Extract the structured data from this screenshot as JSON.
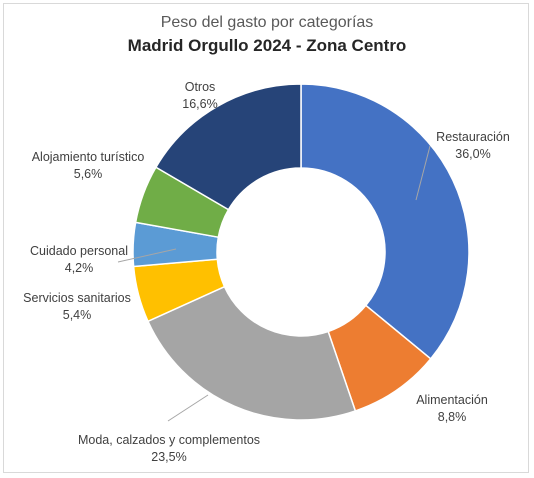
{
  "chart_data": {
    "type": "pie",
    "donut": true,
    "title": "Peso del gasto por categorías",
    "subtitle": "Madrid Orgullo 2024 - Zona Centro",
    "slices": [
      {
        "label": "Restauración",
        "value_label": "36,0%",
        "value": 36.0,
        "color": "#4472C4"
      },
      {
        "label": "Alimentación",
        "value_label": "8,8%",
        "value": 8.8,
        "color": "#ED7D31"
      },
      {
        "label": "Moda, calzados y complementos",
        "value_label": "23,5%",
        "value": 23.5,
        "color": "#A5A5A5"
      },
      {
        "label": "Servicios sanitarios",
        "value_label": "5,4%",
        "value": 5.4,
        "color": "#FFC000"
      },
      {
        "label": "Cuidado personal",
        "value_label": "4,2%",
        "value": 4.2,
        "color": "#5B9BD5"
      },
      {
        "label": "Alojamiento turístico",
        "value_label": "5,6%",
        "value": 5.6,
        "color": "#70AD47"
      },
      {
        "label": "Otros",
        "value_label": "16,6%",
        "value": 16.6,
        "color": "#264478"
      }
    ]
  }
}
